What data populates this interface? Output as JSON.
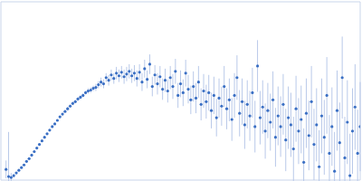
{
  "chart_data": {
    "type": "scatter",
    "color": "#3a6fc4",
    "marker": "circle",
    "grid": true,
    "tick_labels": false,
    "xlim": [
      0,
      3.5
    ],
    "xticks": [
      1
    ],
    "ylim": [
      0,
      2
    ],
    "yticks": [
      1
    ],
    "x": [
      0.05,
      0.075,
      0.1,
      0.125,
      0.15,
      0.175,
      0.2,
      0.225,
      0.25,
      0.275,
      0.3,
      0.325,
      0.35,
      0.375,
      0.4,
      0.425,
      0.45,
      0.475,
      0.5,
      0.525,
      0.55,
      0.575,
      0.6,
      0.625,
      0.65,
      0.675,
      0.7,
      0.725,
      0.75,
      0.775,
      0.8,
      0.825,
      0.85,
      0.875,
      0.9,
      0.925,
      0.95,
      0.975,
      1.0,
      1.025,
      1.05,
      1.075,
      1.1,
      1.125,
      1.15,
      1.175,
      1.2,
      1.225,
      1.25,
      1.275,
      1.3,
      1.325,
      1.35,
      1.375,
      1.4,
      1.425,
      1.45,
      1.475,
      1.5,
      1.525,
      1.55,
      1.575,
      1.6,
      1.625,
      1.65,
      1.675,
      1.7,
      1.725,
      1.75,
      1.775,
      1.8,
      1.825,
      1.85,
      1.875,
      1.9,
      1.925,
      1.95,
      1.975,
      2.0,
      2.025,
      2.05,
      2.075,
      2.1,
      2.125,
      2.15,
      2.175,
      2.2,
      2.225,
      2.25,
      2.275,
      2.3,
      2.325,
      2.35,
      2.375,
      2.4,
      2.425,
      2.45,
      2.475,
      2.5,
      2.525,
      2.55,
      2.575,
      2.6,
      2.625,
      2.65,
      2.675,
      2.7,
      2.725,
      2.75,
      2.775,
      2.8,
      2.825,
      2.85,
      2.875,
      2.9,
      2.925,
      2.95,
      2.975,
      3.0,
      3.025,
      3.05,
      3.075,
      3.1,
      3.125,
      3.15,
      3.175,
      3.2,
      3.225,
      3.25,
      3.275,
      3.3,
      3.325,
      3.35,
      3.375,
      3.4,
      3.425,
      3.45,
      3.475,
      3.5
    ],
    "values": [
      0.12,
      0.04,
      0.03,
      0.05,
      0.08,
      0.11,
      0.14,
      0.17,
      0.21,
      0.24,
      0.28,
      0.32,
      0.36,
      0.4,
      0.44,
      0.48,
      0.52,
      0.56,
      0.6,
      0.63,
      0.67,
      0.71,
      0.74,
      0.77,
      0.8,
      0.83,
      0.86,
      0.88,
      0.91,
      0.93,
      0.95,
      0.98,
      1.0,
      1.01,
      1.03,
      1.04,
      1.07,
      1.1,
      1.08,
      1.15,
      1.12,
      1.18,
      1.14,
      1.2,
      1.17,
      1.21,
      1.16,
      1.19,
      1.22,
      1.17,
      1.2,
      1.14,
      1.21,
      1.1,
      1.25,
      1.13,
      1.3,
      1.05,
      1.18,
      1.08,
      1.16,
      1.02,
      1.12,
      1.0,
      1.15,
      1.05,
      1.22,
      0.95,
      1.08,
      0.98,
      1.2,
      1.02,
      0.9,
      1.05,
      0.92,
      1.1,
      0.85,
      1.0,
      0.88,
      0.98,
      0.78,
      0.95,
      0.7,
      0.92,
      0.83,
      1.05,
      0.8,
      0.9,
      0.68,
      0.95,
      1.15,
      0.75,
      0.88,
      0.62,
      0.85,
      0.72,
      0.98,
      0.6,
      1.28,
      0.7,
      0.82,
      0.55,
      0.78,
      0.65,
      0.9,
      0.48,
      0.72,
      0.6,
      0.85,
      0.45,
      0.7,
      0.62,
      0.35,
      0.8,
      0.55,
      0.68,
      0.2,
      0.75,
      0.5,
      0.88,
      0.4,
      0.62,
      0.15,
      0.72,
      0.48,
      0.95,
      0.3,
      0.6,
      0.1,
      0.78,
      0.42,
      1.15,
      0.25,
      0.65,
      0.05,
      0.55,
      0.82,
      0.3,
      0.6
    ],
    "errors": [
      0.1,
      0.5,
      0.05,
      0.02,
      0.01,
      0.01,
      0.01,
      0.01,
      0.01,
      0.01,
      0.01,
      0.01,
      0.01,
      0.01,
      0.01,
      0.01,
      0.01,
      0.01,
      0.01,
      0.01,
      0.01,
      0.01,
      0.01,
      0.01,
      0.02,
      0.02,
      0.02,
      0.02,
      0.02,
      0.02,
      0.02,
      0.02,
      0.03,
      0.03,
      0.03,
      0.04,
      0.04,
      0.05,
      0.05,
      0.05,
      0.06,
      0.06,
      0.06,
      0.07,
      0.07,
      0.07,
      0.08,
      0.08,
      0.08,
      0.08,
      0.09,
      0.09,
      0.09,
      0.1,
      0.1,
      0.1,
      0.11,
      0.11,
      0.11,
      0.12,
      0.12,
      0.12,
      0.13,
      0.13,
      0.13,
      0.14,
      0.14,
      0.14,
      0.15,
      0.15,
      0.15,
      0.16,
      0.16,
      0.17,
      0.17,
      0.18,
      0.18,
      0.19,
      0.19,
      0.2,
      0.2,
      0.21,
      0.21,
      0.22,
      0.22,
      0.23,
      0.23,
      0.24,
      0.24,
      0.25,
      0.25,
      0.26,
      0.26,
      0.27,
      0.27,
      0.28,
      0.28,
      0.29,
      0.29,
      0.3,
      0.3,
      0.31,
      0.31,
      0.32,
      0.32,
      0.33,
      0.33,
      0.34,
      0.34,
      0.35,
      0.35,
      0.36,
      0.36,
      0.37,
      0.37,
      0.38,
      0.38,
      0.39,
      0.39,
      0.4,
      0.4,
      0.41,
      0.41,
      0.42,
      0.42,
      0.43,
      0.43,
      0.44,
      0.44,
      0.45,
      0.45,
      0.46,
      0.46,
      0.47,
      0.47,
      0.48,
      0.48,
      0.49,
      0.5
    ]
  }
}
